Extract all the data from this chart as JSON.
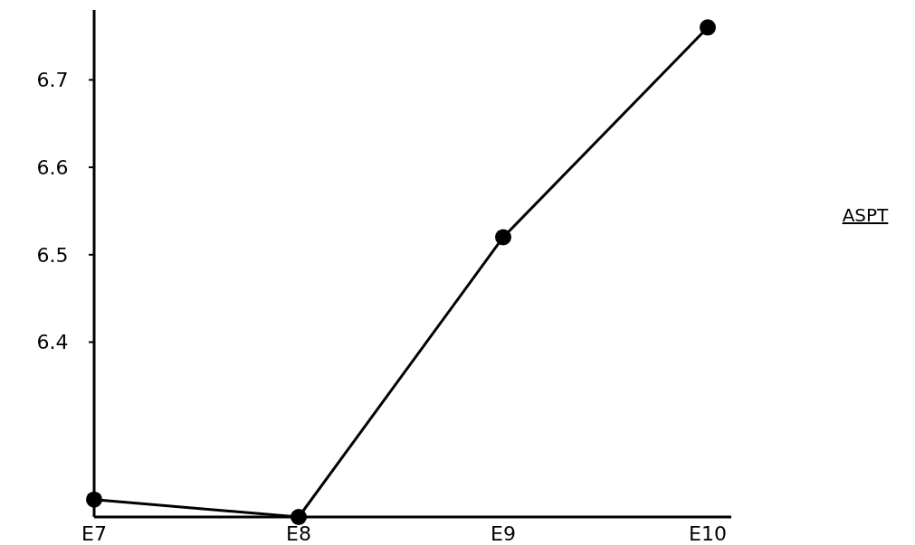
{
  "chart_data": {
    "type": "line",
    "annotations": [
      "ASPT"
    ],
    "categories": [
      "E7",
      "E8",
      "E9",
      "E10"
    ],
    "series": [
      {
        "color": "#000000",
        "values": [
          6.22,
          6.2,
          6.52,
          6.76
        ]
      }
    ],
    "ylim": [
      6.2,
      6.78
    ],
    "yticks": [
      6.4,
      6.5,
      6.6,
      6.7
    ],
    "marker": "circle",
    "line_style": "solid"
  }
}
